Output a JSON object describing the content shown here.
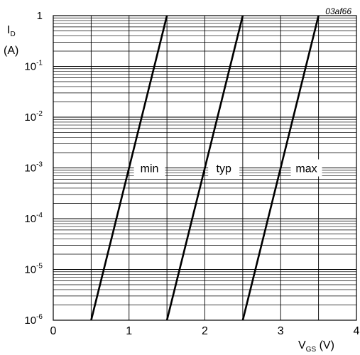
{
  "chart_data": {
    "type": "line",
    "scale_y": "log",
    "figure_id": "03af66",
    "ylabel": {
      "symbol": "I",
      "subscript": "D",
      "unit": "(A)"
    },
    "xlabel": {
      "symbol": "V",
      "subscript": "GS",
      "unit": "(V)"
    },
    "xlim": [
      0,
      4
    ],
    "ylim": [
      1e-06,
      1
    ],
    "x_ticks": [
      0,
      1,
      2,
      3,
      4
    ],
    "y_ticks": [
      {
        "value": 1,
        "base": "1",
        "exp": ""
      },
      {
        "value": 0.1,
        "base": "10",
        "exp": "-1"
      },
      {
        "value": 0.01,
        "base": "10",
        "exp": "-2"
      },
      {
        "value": 0.001,
        "base": "10",
        "exp": "-3"
      },
      {
        "value": 0.0001,
        "base": "10",
        "exp": "-4"
      },
      {
        "value": 1e-05,
        "base": "10",
        "exp": "-5"
      },
      {
        "value": 1e-06,
        "base": "10",
        "exp": "-6"
      }
    ],
    "grid": true,
    "series": [
      {
        "name": "min",
        "x": [
          0.5,
          1.5
        ],
        "y": [
          1e-06,
          1
        ],
        "label_at": {
          "x": 1.27,
          "y": 0.001
        }
      },
      {
        "name": "typ",
        "x": [
          1.5,
          2.5
        ],
        "y": [
          1e-06,
          1
        ],
        "label_at": {
          "x": 2.25,
          "y": 0.001
        }
      },
      {
        "name": "max",
        "x": [
          2.5,
          3.5
        ],
        "y": [
          1e-06,
          1
        ],
        "label_at": {
          "x": 3.34,
          "y": 0.001
        }
      }
    ]
  }
}
